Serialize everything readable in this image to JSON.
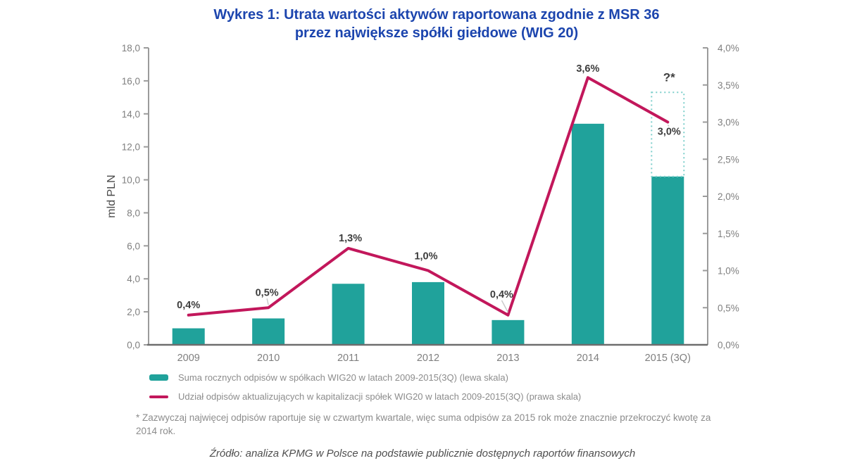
{
  "title": {
    "line1": "Wykres 1: Utrata wartości aktywów raportowana zgodnie z MSR 36",
    "line2": "przez największe spółki giełdowe (WIG 20)"
  },
  "colors": {
    "title_blue": "#1C45AE",
    "bar_teal": "#20A29B",
    "line_crimson": "#C2175B",
    "projection_dash": "#7CCFCB",
    "axis_gray": "#9b9b9b",
    "baseline_gray": "#6e6e6e"
  },
  "chart_data": {
    "type": "bar",
    "categories": [
      "2009",
      "2010",
      "2011",
      "2012",
      "2013",
      "2014",
      "2015 (3Q)"
    ],
    "series": [
      {
        "name": "Suma rocznych odpisów w spółkach WIG20 w latach 2009-2015(3Q) (lewa skala)",
        "type": "bar",
        "axis": "left",
        "color": "#20A29B",
        "values": [
          1.0,
          1.6,
          3.7,
          3.8,
          1.5,
          13.4,
          10.2
        ]
      },
      {
        "name": "Udział odpisów aktualizujących w kapitalizacji spółek WIG20 w latach 2009-2015(3Q) (prawa skala)",
        "type": "line",
        "axis": "right",
        "color": "#C2175B",
        "values": [
          0.4,
          0.5,
          1.3,
          1.0,
          0.4,
          3.6,
          3.0
        ],
        "point_labels": [
          {
            "text": "0,4%",
            "dx": 0,
            "dy": -10,
            "leader": false
          },
          {
            "text": "0,5%",
            "dx": -2,
            "dy": -17,
            "leader": true
          },
          {
            "text": "1,3%",
            "dx": 3,
            "dy": -10,
            "leader": false
          },
          {
            "text": "1,0%",
            "dx": -3,
            "dy": -16,
            "leader": false
          },
          {
            "text": "0,4%",
            "dx": -9,
            "dy": -25,
            "leader": true
          },
          {
            "text": "3,6%",
            "dx": 0,
            "dy": -8,
            "leader": true
          },
          {
            "text": "3,0%",
            "dx": 2,
            "dy": 18,
            "leader": true
          }
        ]
      }
    ],
    "left_axis": {
      "label": "mld PLN",
      "min": 0,
      "max": 18,
      "step": 2,
      "format": "decimal-comma"
    },
    "right_axis": {
      "label": "",
      "min": 0,
      "max": 4,
      "step": 0.5,
      "format": "percent-comma"
    },
    "annotations": [
      {
        "type": "dashed-projection-box",
        "category_index": 6,
        "from_value": 10.2,
        "to_value": 15.3,
        "stroke": "#7CCFCB",
        "label": "?*"
      }
    ],
    "grid": false,
    "legend_position": "bottom-left"
  },
  "footnote": "* Zazwyczaj najwięcej odpisów raportuje się w czwartym kwartale, więc suma odpisów za 2015 rok może znacznie przekroczyć kwotę za 2014 rok.",
  "source": "Źródło: analiza KPMG w Polsce na podstawie publicznie dostępnych raportów finansowych"
}
